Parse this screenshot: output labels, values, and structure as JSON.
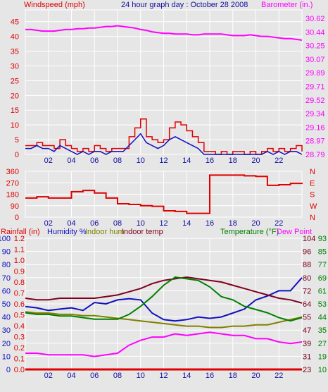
{
  "header": {
    "left": "Windspeed (mph)",
    "center": "24 hour graph day : October 28 2008",
    "right": "Barometer (in.)"
  },
  "colors": {
    "wind": "#e00000",
    "wind_avg": "#1010c0",
    "barometer": "#ff00ff",
    "direction": "#e00000",
    "humidity": "#1010c0",
    "indoor_hum": "#808000",
    "indoor_temp": "#800020",
    "temperature": "#008000",
    "dew_point": "#ff00ff",
    "rainfall": "#e00000",
    "panel_bg": "#e6e6e6",
    "grid": "#ffffff"
  },
  "x_ticks": [
    "02",
    "04",
    "06",
    "08",
    "10",
    "12",
    "14",
    "16",
    "18",
    "20",
    "22"
  ],
  "chart_data": [
    {
      "type": "line",
      "title": "24 hour graph day : October 28 2008",
      "xlabel": "",
      "x": [
        0,
        0.5,
        1,
        1.5,
        2,
        2.5,
        3,
        3.5,
        4,
        4.5,
        5,
        5.5,
        6,
        6.5,
        7,
        7.5,
        8,
        8.5,
        9,
        9.5,
        10,
        10.5,
        11,
        11.5,
        12,
        12.5,
        13,
        13.5,
        14,
        14.5,
        15,
        15.5,
        16,
        16.5,
        17,
        17.5,
        18,
        18.5,
        19,
        19.5,
        20,
        20.5,
        21,
        21.5,
        22,
        22.5,
        23,
        23.5,
        24
      ],
      "y_left": {
        "label": "Windspeed (mph)",
        "ticks": [
          0,
          5,
          10,
          15,
          20,
          25,
          30,
          35,
          40,
          45
        ],
        "ylim": [
          0,
          49
        ]
      },
      "y_right": {
        "label": "Barometer (in.)",
        "ticks": [
          28.79,
          28.97,
          29.16,
          29.34,
          29.52,
          29.71,
          29.89,
          30.07,
          30.25,
          30.44,
          30.62
        ],
        "ylim": [
          28.79,
          30.7
        ]
      },
      "series": [
        {
          "name": "wind_gust",
          "axis": "left",
          "values": [
            3,
            3,
            4,
            3,
            3,
            2,
            5,
            3,
            2,
            1,
            2,
            1,
            3,
            2,
            1,
            2,
            2,
            2,
            6,
            9,
            12,
            6,
            5,
            4,
            5,
            9,
            11,
            10,
            8,
            6,
            4,
            1,
            1,
            0,
            1,
            0,
            1,
            1,
            0,
            1,
            0,
            1,
            2,
            1,
            2,
            1,
            2,
            3,
            1
          ]
        },
        {
          "name": "wind_avg",
          "axis": "left",
          "values": [
            2,
            2,
            3,
            2,
            2,
            1,
            3,
            2,
            1,
            0,
            1,
            0,
            1,
            1,
            0,
            1,
            1,
            1,
            3,
            5,
            7,
            4,
            3,
            2,
            3,
            5,
            6,
            5,
            4,
            3,
            2,
            0,
            0,
            0,
            0,
            0,
            0,
            0,
            0,
            0,
            0,
            0,
            1,
            0,
            1,
            0,
            1,
            1,
            0
          ]
        },
        {
          "name": "barometer",
          "axis": "right",
          "values": [
            30.44,
            30.44,
            30.43,
            30.42,
            30.42,
            30.42,
            30.43,
            30.44,
            30.44,
            30.45,
            30.45,
            30.46,
            30.46,
            30.47,
            30.48,
            30.48,
            30.49,
            30.48,
            30.47,
            30.46,
            30.44,
            30.43,
            30.41,
            30.4,
            30.39,
            30.39,
            30.38,
            30.38,
            30.38,
            30.37,
            30.37,
            30.38,
            30.38,
            30.38,
            30.38,
            30.37,
            30.36,
            30.36,
            30.36,
            30.37,
            30.36,
            30.35,
            30.35,
            30.34,
            30.33,
            30.32,
            30.32,
            30.31,
            30.3
          ]
        }
      ]
    },
    {
      "type": "line",
      "title": "",
      "xlabel": "",
      "x": [
        0,
        1,
        2,
        3,
        4,
        5,
        6,
        7,
        8,
        9,
        10,
        11,
        12,
        13,
        14,
        15,
        16,
        17,
        18,
        19,
        20,
        21,
        22,
        23,
        24
      ],
      "y_left": {
        "ticks": [
          0,
          90,
          180,
          270,
          360
        ],
        "ylim": [
          0,
          360
        ]
      },
      "y_right": {
        "ticks": [
          "N",
          "W",
          "S",
          "E",
          "N"
        ]
      },
      "series": [
        {
          "name": "wind_direction",
          "axis": "left",
          "values": [
            150,
            160,
            150,
            150,
            200,
            210,
            190,
            150,
            105,
            100,
            90,
            85,
            50,
            45,
            30,
            30,
            330,
            330,
            330,
            325,
            320,
            250,
            255,
            265,
            270
          ]
        }
      ]
    },
    {
      "type": "line",
      "title": "",
      "xlabel": "",
      "legend": [
        "Rainfall (in)",
        "Humidity %",
        "Indoor hum",
        "Indoor temp",
        "Temperature (°F)",
        "Dew Point"
      ],
      "x": [
        0,
        1,
        2,
        3,
        4,
        5,
        6,
        7,
        8,
        9,
        10,
        11,
        12,
        13,
        14,
        15,
        16,
        17,
        18,
        19,
        20,
        21,
        22,
        23,
        24
      ],
      "axes": {
        "rainfall": {
          "ticks": [
            0.0,
            0.1,
            0.2,
            0.3,
            0.4,
            0.5,
            0.6,
            0.7,
            0.8,
            0.9,
            1.0,
            1.1,
            1.2
          ]
        },
        "humidity": {
          "ticks": [
            0,
            10,
            20,
            30,
            40,
            50,
            60,
            70,
            80,
            90,
            100
          ]
        },
        "temperature_left": {
          "ticks": [
            23,
            31,
            39,
            47,
            55,
            64,
            72,
            80,
            88,
            96,
            104
          ]
        },
        "temperature_right": {
          "ticks": [
            10,
            19,
            27,
            35,
            44,
            53,
            61,
            69,
            77,
            85,
            93
          ]
        }
      },
      "series": [
        {
          "name": "Rainfall (in)",
          "axis": "rainfall",
          "values": [
            0,
            0,
            0,
            0,
            0,
            0,
            0,
            0,
            0,
            0,
            0,
            0,
            0,
            0,
            0,
            0,
            0,
            0,
            0,
            0,
            0,
            0,
            0,
            0,
            0
          ]
        },
        {
          "name": "Humidity %",
          "axis": "humidity",
          "values": [
            48,
            47,
            45,
            46,
            47,
            45,
            51,
            50,
            53,
            54,
            53,
            43,
            38,
            37,
            38,
            40,
            39,
            40,
            43,
            46,
            53,
            56,
            60,
            60,
            70
          ]
        },
        {
          "name": "Indoor hum",
          "axis": "humidity",
          "values": [
            44,
            43,
            43,
            42,
            42,
            41,
            41,
            40,
            39,
            38,
            37,
            36,
            35,
            34,
            33,
            33,
            32,
            32,
            33,
            33,
            34,
            34,
            36,
            38,
            40
          ]
        },
        {
          "name": "Indoor temp",
          "axis": "temperature_left",
          "values": [
            67,
            66,
            66,
            67,
            67,
            67,
            67,
            68,
            69,
            71,
            73,
            76,
            78,
            79,
            80,
            79,
            78,
            77,
            75,
            73,
            71,
            69,
            67,
            66,
            64
          ]
        },
        {
          "name": "Temperature (°F)",
          "axis": "temperature_left",
          "values": [
            58,
            57,
            57,
            56,
            56,
            55,
            54,
            54,
            54,
            57,
            62,
            68,
            75,
            80,
            79,
            78,
            74,
            68,
            66,
            62,
            60,
            58,
            55,
            53,
            55
          ]
        },
        {
          "name": "Dew Point",
          "axis": "temperature_left",
          "values": [
            33,
            33,
            32,
            32,
            32,
            32,
            31,
            32,
            33,
            38,
            41,
            43,
            43,
            45,
            44,
            45,
            46,
            45,
            44,
            44,
            42,
            42,
            40,
            39,
            40
          ]
        }
      ]
    }
  ]
}
